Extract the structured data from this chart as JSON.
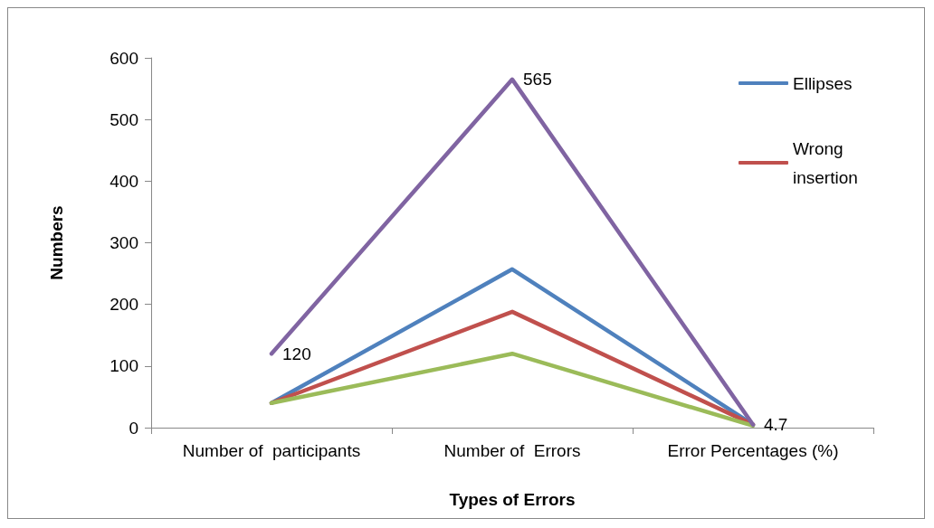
{
  "chart_data": {
    "type": "line",
    "xlabel": "Types of Errors",
    "ylabel": "Numbers",
    "categories": [
      "Number of  participants",
      "Number of  Errors",
      "Error Percentages (%)"
    ],
    "series": [
      {
        "name": "Ellipses",
        "color": "#4f81bd",
        "values": [
          40,
          257,
          5
        ]
      },
      {
        "name": "Wrong insertion",
        "color": "#c0504d",
        "values": [
          40,
          188,
          5
        ]
      },
      {
        "color": "#9bbb59",
        "values": [
          40,
          120,
          3
        ]
      },
      {
        "color": "#8064a2",
        "values": [
          120,
          565,
          4.7
        ],
        "value_labels": [
          "120",
          "565",
          "4.7"
        ]
      }
    ],
    "ylim": [
      0,
      600
    ],
    "yticks": [
      0,
      100,
      200,
      300,
      400,
      500,
      600
    ],
    "grid": false,
    "legend": "top right",
    "marker": "none",
    "line_style": "solid"
  }
}
